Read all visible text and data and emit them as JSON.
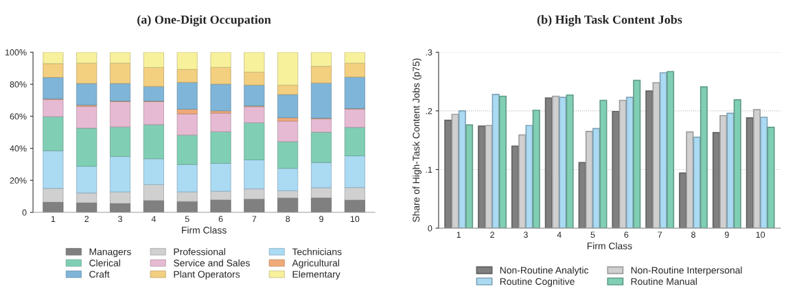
{
  "chart_data": [
    {
      "type": "bar",
      "title": "(a) One-Digit Occupation",
      "xlabel": "Firm Class",
      "stacked": true,
      "legend": "bottom",
      "grid": false,
      "categories": [
        "1",
        "2",
        "3",
        "4",
        "5",
        "6",
        "7",
        "8",
        "9",
        "10"
      ],
      "ylim": [
        0,
        100
      ],
      "yticks": [
        {
          "value": 0,
          "label": "0"
        },
        {
          "value": 20,
          "label": "20%"
        },
        {
          "value": 40,
          "label": "40%"
        },
        {
          "value": 60,
          "label": "60%"
        },
        {
          "value": 80,
          "label": "80%"
        },
        {
          "value": 100,
          "label": "100%"
        }
      ],
      "series": [
        {
          "name": "Managers",
          "color": "#808080",
          "values": [
            6.4,
            6.0,
            5.6,
            7.4,
            6.8,
            7.8,
            8.3,
            9.0,
            9.1,
            7.7
          ]
        },
        {
          "name": "Professional",
          "color": "#d0d0d0",
          "values": [
            8.6,
            6.1,
            7.2,
            10.0,
            6.0,
            5.4,
            6.4,
            4.5,
            6.3,
            7.8
          ]
        },
        {
          "name": "Technicians",
          "color": "#abdaf3",
          "values": [
            23.5,
            16.7,
            22.1,
            16.1,
            17.1,
            17.4,
            18.1,
            14.0,
            15.7,
            19.8
          ]
        },
        {
          "name": "Clerical",
          "color": "#80cfb5",
          "values": [
            21.3,
            23.8,
            18.5,
            21.3,
            18.4,
            19.8,
            23.2,
            16.7,
            19.0,
            17.8
          ]
        },
        {
          "name": "Service and Sales",
          "color": "#e6bad2",
          "values": [
            10.7,
            13.6,
            15.7,
            14.3,
            13.2,
            11.6,
            10.0,
            12.8,
            8.3,
            11.4
          ]
        },
        {
          "name": "Agricultural",
          "color": "#f0aa78",
          "values": [
            0.4,
            0.8,
            0.4,
            0.4,
            2.9,
            1.4,
            0.5,
            2.1,
            0.4,
            0.3
          ]
        },
        {
          "name": "Craft",
          "color": "#7fb5d8",
          "values": [
            13.4,
            13.5,
            11.0,
            9.1,
            16.8,
            16.7,
            13.0,
            14.5,
            22.0,
            19.7
          ]
        },
        {
          "name": "Plant Operators",
          "color": "#f3cf80",
          "values": [
            8.6,
            12.7,
            12.7,
            11.9,
            8.1,
            10.5,
            8.1,
            5.9,
            10.4,
            8.7
          ]
        },
        {
          "name": "Elementary",
          "color": "#f8f19b",
          "values": [
            7.1,
            6.8,
            6.8,
            9.5,
            10.7,
            9.4,
            12.4,
            20.5,
            8.8,
            6.8
          ]
        }
      ]
    },
    {
      "type": "bar",
      "title": "(b) High Task Content Jobs",
      "xlabel": "Firm Class",
      "ylabel": "Share of High-Task Content Jobs (p75)",
      "legend": "bottom",
      "grid": "y",
      "categories": [
        "1",
        "2",
        "3",
        "4",
        "5",
        "6",
        "7",
        "8",
        "9",
        "10"
      ],
      "ylim": [
        0,
        0.3
      ],
      "yticks": [
        {
          "value": 0,
          "label": "0"
        },
        {
          "value": 0.1,
          "label": ".1"
        },
        {
          "value": 0.2,
          "label": ".2"
        },
        {
          "value": 0.3,
          "label": ".3"
        }
      ],
      "series": [
        {
          "name": "Non-Routine Analytic",
          "color": "#808080",
          "values": [
            0.184,
            0.174,
            0.14,
            0.222,
            0.112,
            0.199,
            0.234,
            0.094,
            0.163,
            0.188
          ]
        },
        {
          "name": "Non-Routine Interpersonal",
          "color": "#d0d0d0",
          "values": [
            0.194,
            0.175,
            0.159,
            0.225,
            0.165,
            0.218,
            0.248,
            0.164,
            0.192,
            0.202
          ]
        },
        {
          "name": "Routine Cognitive",
          "color": "#abdaf3",
          "values": [
            0.2,
            0.228,
            0.175,
            0.223,
            0.17,
            0.223,
            0.265,
            0.155,
            0.196,
            0.189
          ]
        },
        {
          "name": "Routine Manual",
          "color": "#80cfb5",
          "values": [
            0.176,
            0.225,
            0.201,
            0.227,
            0.218,
            0.252,
            0.267,
            0.241,
            0.219,
            0.172
          ]
        }
      ]
    }
  ]
}
